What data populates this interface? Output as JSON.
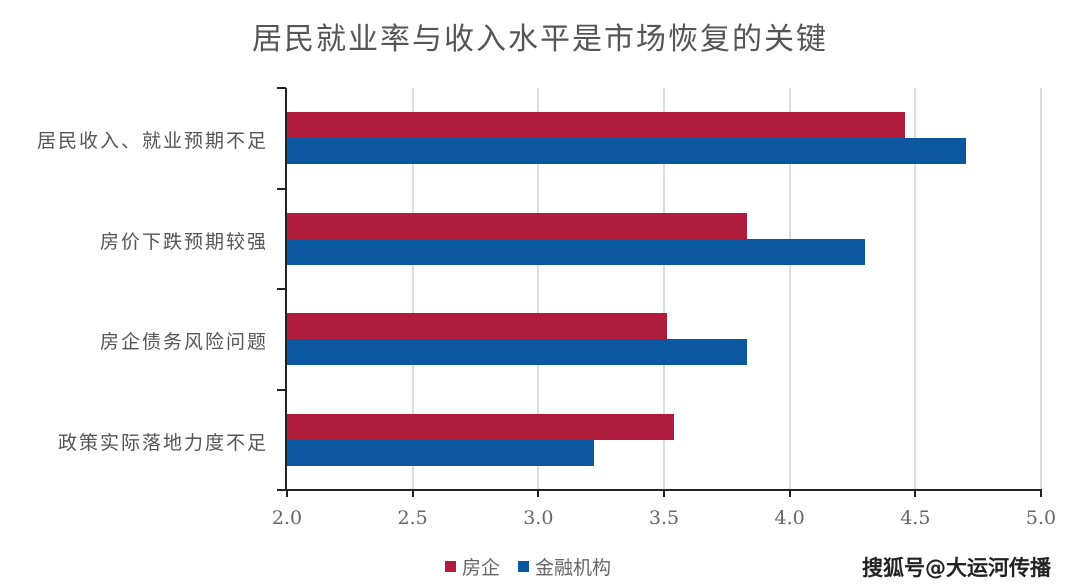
{
  "title": "居民就业率与收入水平是市场恢复的关键",
  "legend": [
    {
      "label": "房企",
      "color": "#b01c3c"
    },
    {
      "label": "金融机构",
      "color": "#0b58a0"
    }
  ],
  "watermark": "搜狐号@大运河传播",
  "x_ticks": [
    "2.0",
    "2.5",
    "3.0",
    "3.5",
    "4.0",
    "4.5",
    "5.0"
  ],
  "categories": [
    "居民收入、就业预期不足",
    "房价下跌预期较强",
    "房企债务风险问题",
    "政策实际落地力度不足"
  ],
  "chart_data": {
    "type": "bar",
    "orientation": "horizontal",
    "title": "居民就业率与收入水平是市场恢复的关键",
    "categories": [
      "居民收入、就业预期不足",
      "房价下跌预期较强",
      "房企债务风险问题",
      "政策实际落地力度不足"
    ],
    "series": [
      {
        "name": "房企",
        "color": "#b01c3c",
        "values": [
          4.46,
          3.83,
          3.51,
          3.54
        ]
      },
      {
        "name": "金融机构",
        "color": "#0b58a0",
        "values": [
          4.7,
          4.3,
          3.83,
          3.22
        ]
      }
    ],
    "xlabel": "",
    "ylabel": "",
    "xlim": [
      2.0,
      5.0
    ],
    "x_ticks": [
      2.0,
      2.5,
      3.0,
      3.5,
      4.0,
      4.5,
      5.0
    ],
    "grid": "vertical",
    "legend_position": "bottom"
  }
}
